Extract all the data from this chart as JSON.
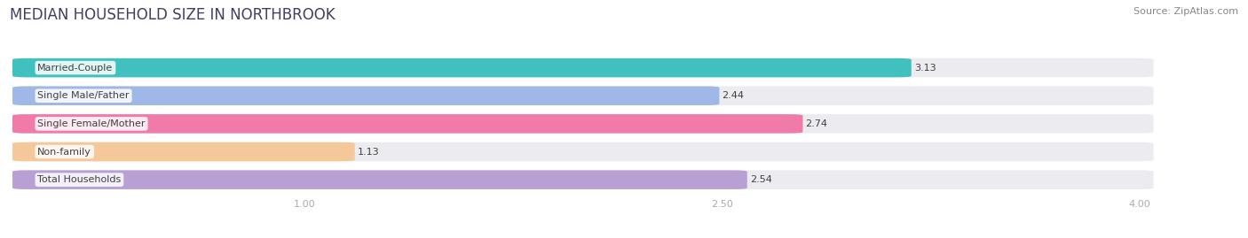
{
  "title": "MEDIAN HOUSEHOLD SIZE IN NORTHBROOK",
  "source": "Source: ZipAtlas.com",
  "categories": [
    "Married-Couple",
    "Single Male/Father",
    "Single Female/Mother",
    "Non-family",
    "Total Households"
  ],
  "values": [
    3.13,
    2.44,
    2.74,
    1.13,
    2.54
  ],
  "bar_colors": [
    "#40c0bf",
    "#a0b8e8",
    "#f07aaa",
    "#f5c89a",
    "#b8a0d4"
  ],
  "xmin": 0.0,
  "xmax": 4.0,
  "xlim_left": -0.05,
  "xlim_right": 4.3,
  "xticks": [
    1.0,
    2.5,
    4.0
  ],
  "xtick_labels": [
    "1.00",
    "2.50",
    "4.00"
  ],
  "background_color": "#ffffff",
  "bar_bg_color": "#ebebf0",
  "title_fontsize": 12,
  "label_fontsize": 8,
  "value_fontsize": 8,
  "source_fontsize": 8,
  "title_color": "#404060",
  "label_color": "#404040",
  "value_color": "#404040",
  "source_color": "#888888",
  "tick_color": "#aaaaaa"
}
